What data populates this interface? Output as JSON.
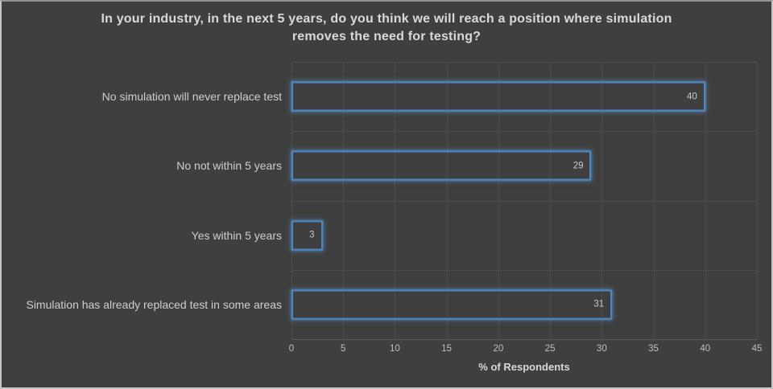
{
  "chart": {
    "title_line1": "In your industry, in the next 5 years, do you think we will reach a position where simulation",
    "title_line2": "removes the need for testing?"
  },
  "chart_data": {
    "type": "bar",
    "orientation": "horizontal",
    "title": "In your industry, in the next 5 years, do you think we will reach a position where simulation removes the need for testing?",
    "categories": [
      "No simulation will never replace test",
      "No not within 5 years",
      "Yes within 5 years",
      "Simulation has already replaced test in some areas"
    ],
    "values": [
      40,
      29,
      3,
      31
    ],
    "xlabel": "% of Respondents",
    "ylabel": "",
    "xlim": [
      0,
      45
    ],
    "xticks": [
      0,
      5,
      10,
      15,
      20,
      25,
      30,
      35,
      40,
      45
    ],
    "grid": true,
    "legend": "none",
    "data_labels_position": "inside-end",
    "colors": {
      "background": "#3f3f3f",
      "bar_fill": "transparent",
      "bar_border": "#4f86c0",
      "bar_glow": "#5b9bd5",
      "gridline": "#4d4d4d",
      "axis_line": "#5c5c5c",
      "title_text": "#d9d9d9",
      "category_text": "#cfcdcd",
      "tick_text": "#bfbfbf",
      "value_text": "#c9c9c9"
    }
  }
}
